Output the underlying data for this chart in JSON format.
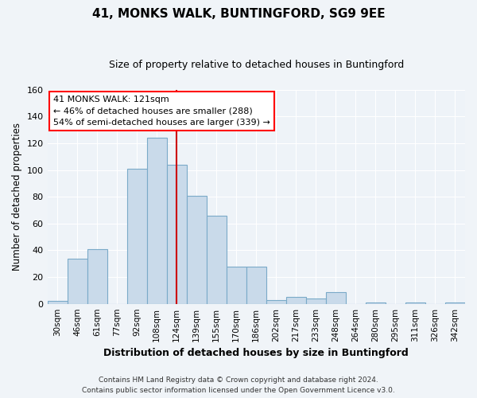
{
  "title": "41, MONKS WALK, BUNTINGFORD, SG9 9EE",
  "subtitle": "Size of property relative to detached houses in Buntingford",
  "xlabel": "Distribution of detached houses by size in Buntingford",
  "ylabel": "Number of detached properties",
  "bin_labels": [
    "30sqm",
    "46sqm",
    "61sqm",
    "77sqm",
    "92sqm",
    "108sqm",
    "124sqm",
    "139sqm",
    "155sqm",
    "170sqm",
    "186sqm",
    "202sqm",
    "217sqm",
    "233sqm",
    "248sqm",
    "264sqm",
    "280sqm",
    "295sqm",
    "311sqm",
    "326sqm",
    "342sqm"
  ],
  "bar_values": [
    2,
    34,
    41,
    0,
    101,
    124,
    104,
    81,
    66,
    28,
    28,
    3,
    5,
    4,
    9,
    0,
    1,
    0,
    1,
    0,
    1
  ],
  "bar_color": "#c9daea",
  "bar_edge_color": "#7aaac8",
  "vline_x_index": 6,
  "vline_color": "#cc0000",
  "annotation_title": "41 MONKS WALK: 121sqm",
  "annotation_line1": "← 46% of detached houses are smaller (288)",
  "annotation_line2": "54% of semi-detached houses are larger (339) →",
  "ylim": [
    0,
    160
  ],
  "yticks": [
    0,
    20,
    40,
    60,
    80,
    100,
    120,
    140,
    160
  ],
  "footer_line1": "Contains HM Land Registry data © Crown copyright and database right 2024.",
  "footer_line2": "Contains public sector information licensed under the Open Government Licence v3.0.",
  "bg_color": "#f0f4f8",
  "plot_bg_color": "#eef3f8",
  "grid_color": "#ffffff",
  "title_fontsize": 11,
  "subtitle_fontsize": 9,
  "ylabel_fontsize": 8.5,
  "xlabel_fontsize": 9,
  "tick_fontsize": 7.5,
  "footer_fontsize": 6.5
}
